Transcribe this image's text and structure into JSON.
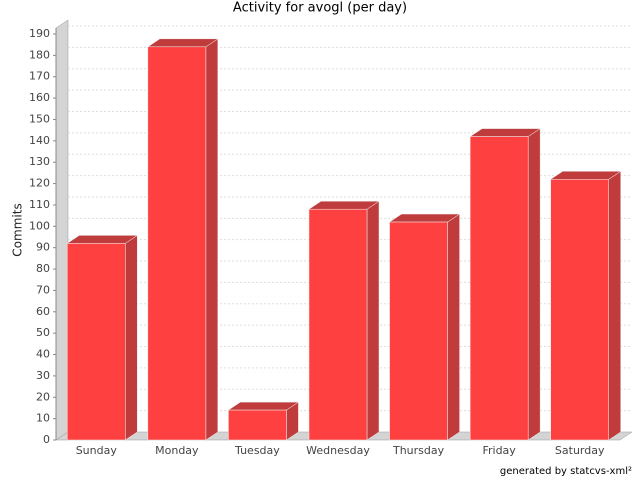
{
  "chart_data": {
    "type": "bar3d",
    "title": "Activity for avogl (per day)",
    "y_label": "Commits",
    "footer": "generated by statcvs-xml²",
    "categories": [
      "Sunday",
      "Monday",
      "Tuesday",
      "Wednesday",
      "Thursday",
      "Friday",
      "Saturday"
    ],
    "values": [
      92,
      184,
      14,
      108,
      102,
      142,
      122
    ],
    "color": "#ff4040",
    "side_color": "#c03c3c",
    "ylim": [
      0,
      190
    ],
    "yticks": [
      0,
      10,
      20,
      30,
      40,
      50,
      60,
      70,
      80,
      90,
      100,
      110,
      120,
      130,
      140,
      150,
      160,
      170,
      180,
      190
    ],
    "grid": true
  }
}
